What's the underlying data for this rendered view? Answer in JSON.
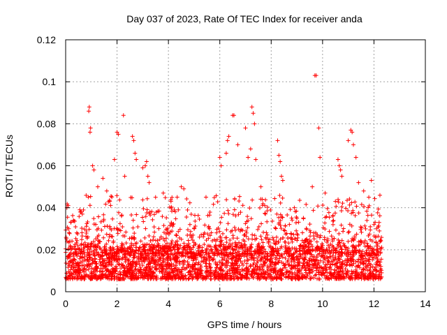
{
  "chart_data": {
    "type": "scatter",
    "title": "Day 037 of 2023, Rate Of TEC Index for receiver anda",
    "xlabel": "GPS time / hours",
    "ylabel": "ROTI / TECUs",
    "xlim": [
      0,
      14
    ],
    "ylim": [
      0,
      0.12
    ],
    "xticks": [
      0,
      2,
      4,
      6,
      8,
      10,
      12,
      14
    ],
    "yticks": [
      0,
      0.02,
      0.04,
      0.06,
      0.08,
      0.1,
      0.12
    ],
    "xtick_labels": [
      "0",
      "2",
      "4",
      "6",
      "8",
      "10",
      "12",
      "14"
    ],
    "ytick_labels": [
      "0",
      "0.02",
      "0.04",
      "0.06",
      "0.08",
      "0.1",
      "0.12"
    ],
    "grid": true,
    "marker": "plus",
    "color": "#ff0000",
    "series": [
      {
        "points_sampled": [
          [
            0.05,
            0.04
          ],
          [
            0.1,
            0.041
          ],
          [
            0.12,
            0.03
          ],
          [
            0.2,
            0.033
          ],
          [
            0.3,
            0.034
          ],
          [
            0.55,
            0.039
          ],
          [
            0.65,
            0.037
          ],
          [
            0.9,
            0.086
          ],
          [
            0.92,
            0.088
          ],
          [
            0.95,
            0.076
          ],
          [
            0.97,
            0.078
          ],
          [
            1.05,
            0.06
          ],
          [
            1.1,
            0.058
          ],
          [
            1.25,
            0.05
          ],
          [
            1.45,
            0.054
          ],
          [
            1.6,
            0.048
          ],
          [
            1.9,
            0.063
          ],
          [
            2.0,
            0.076
          ],
          [
            2.05,
            0.075
          ],
          [
            2.25,
            0.084
          ],
          [
            2.3,
            0.055
          ],
          [
            2.6,
            0.074
          ],
          [
            2.65,
            0.072
          ],
          [
            2.7,
            0.066
          ],
          [
            2.75,
            0.063
          ],
          [
            3.0,
            0.059
          ],
          [
            3.1,
            0.06
          ],
          [
            3.15,
            0.062
          ],
          [
            3.2,
            0.055
          ],
          [
            3.25,
            0.052
          ],
          [
            3.5,
            0.045
          ],
          [
            3.8,
            0.047
          ],
          [
            4.1,
            0.043
          ],
          [
            4.5,
            0.05
          ],
          [
            4.6,
            0.049
          ],
          [
            5.0,
            0.03
          ],
          [
            5.6,
            0.03
          ],
          [
            6.0,
            0.064
          ],
          [
            6.05,
            0.06
          ],
          [
            6.25,
            0.066
          ],
          [
            6.3,
            0.072
          ],
          [
            6.35,
            0.074
          ],
          [
            6.5,
            0.084
          ],
          [
            6.55,
            0.084
          ],
          [
            6.7,
            0.07
          ],
          [
            7.0,
            0.078
          ],
          [
            7.1,
            0.064
          ],
          [
            7.2,
            0.068
          ],
          [
            7.25,
            0.088
          ],
          [
            7.3,
            0.085
          ],
          [
            7.35,
            0.08
          ],
          [
            7.4,
            0.063
          ],
          [
            7.6,
            0.05
          ],
          [
            8.25,
            0.072
          ],
          [
            8.3,
            0.065
          ],
          [
            8.35,
            0.062
          ],
          [
            8.4,
            0.055
          ],
          [
            8.45,
            0.053
          ],
          [
            8.9,
            0.04
          ],
          [
            9.0,
            0.035
          ],
          [
            9.6,
            0.05
          ],
          [
            9.7,
            0.103
          ],
          [
            9.75,
            0.103
          ],
          [
            9.85,
            0.078
          ],
          [
            9.9,
            0.064
          ],
          [
            10.1,
            0.047
          ],
          [
            10.5,
            0.043
          ],
          [
            10.6,
            0.063
          ],
          [
            10.65,
            0.06
          ],
          [
            10.7,
            0.058
          ],
          [
            10.75,
            0.055
          ],
          [
            11.0,
            0.072
          ],
          [
            11.1,
            0.077
          ],
          [
            11.15,
            0.076
          ],
          [
            11.2,
            0.07
          ],
          [
            11.3,
            0.064
          ],
          [
            11.4,
            0.052
          ],
          [
            11.6,
            0.048
          ],
          [
            11.8,
            0.045
          ],
          [
            11.9,
            0.053
          ],
          [
            12.0,
            0.032
          ],
          [
            12.1,
            0.03
          ],
          [
            12.2,
            0.033
          ]
        ]
      }
    ]
  }
}
